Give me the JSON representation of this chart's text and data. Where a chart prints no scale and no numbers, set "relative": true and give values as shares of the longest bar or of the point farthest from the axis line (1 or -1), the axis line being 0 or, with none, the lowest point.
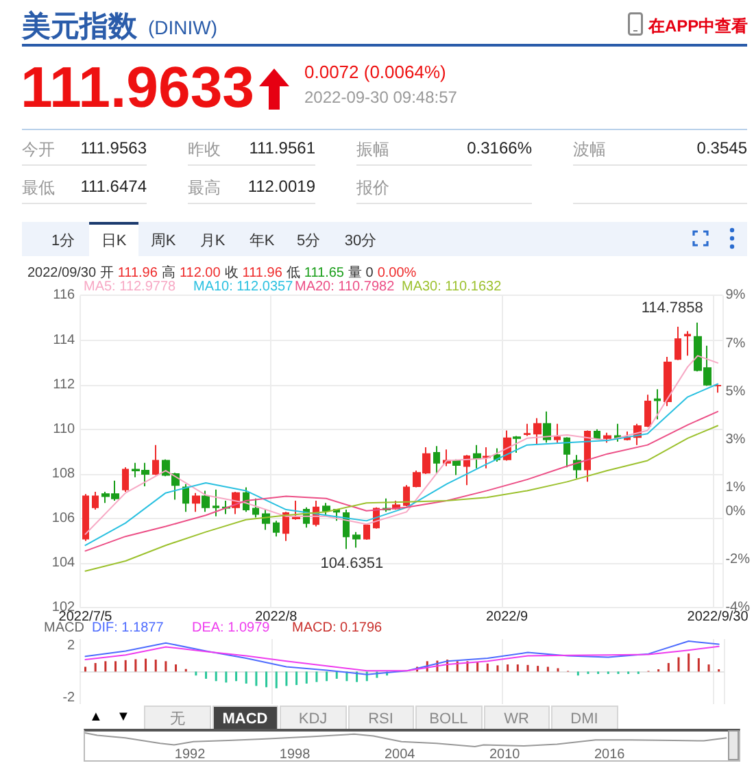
{
  "chart_data": [
    {
      "type": "other",
      "title": "美元指数",
      "subtitle": "(DINIW)",
      "annotations": [
        "在APP中查看",
        "111.9633",
        "0.0072 (0.0064%)",
        "2022-09-30 09:48:57",
        "今开",
        "111.9563",
        "昨收",
        "111.9561",
        "振幅",
        "0.3166%",
        "波幅",
        "0.3545",
        "最低",
        "111.6474",
        "最高",
        "112.0019",
        "报价",
        "1分",
        "日K",
        "周K",
        "月K",
        "年K",
        "5分",
        "30分"
      ]
    },
    {
      "type": "candlestick",
      "categories": [
        "2022/7/5",
        null,
        null,
        null,
        null,
        null,
        null,
        null,
        null,
        null,
        null,
        null,
        null,
        null,
        null,
        null,
        null,
        null,
        null,
        "2022/8",
        null,
        null,
        null,
        null,
        null,
        null,
        null,
        null,
        null,
        null,
        null,
        null,
        null,
        null,
        null,
        null,
        null,
        null,
        null,
        null,
        null,
        null,
        "2022/9",
        null,
        null,
        null,
        null,
        null,
        null,
        null,
        null,
        null,
        null,
        null,
        null,
        null,
        null,
        null,
        null,
        null,
        null,
        null,
        null,
        "2022/9/30"
      ],
      "ohlc": [
        [
          105.1,
          107.1,
          105.0,
          107.0
        ],
        [
          106.5,
          107.2,
          106.4,
          107.0
        ],
        [
          107.1,
          107.2,
          106.7,
          107.0
        ],
        [
          107.1,
          107.7,
          106.8,
          106.9
        ],
        [
          107.3,
          108.3,
          107.2,
          108.2
        ],
        [
          108.2,
          108.5,
          107.85,
          108.15
        ],
        [
          108.15,
          108.5,
          107.45,
          108.0
        ],
        [
          108.0,
          109.3,
          107.95,
          108.6
        ],
        [
          108.6,
          108.65,
          107.9,
          107.95
        ],
        [
          108.0,
          108.05,
          106.85,
          107.5
        ],
        [
          107.4,
          107.55,
          106.3,
          106.7
        ],
        [
          106.7,
          107.15,
          106.3,
          107.0
        ],
        [
          107.0,
          107.25,
          106.3,
          106.5
        ],
        [
          106.55,
          107.3,
          106.1,
          106.5
        ],
        [
          106.5,
          106.8,
          106.2,
          106.48
        ],
        [
          106.5,
          107.2,
          106.2,
          107.15
        ],
        [
          107.15,
          107.4,
          106.3,
          106.4
        ],
        [
          106.45,
          106.9,
          106.05,
          106.2
        ],
        [
          106.2,
          106.4,
          105.5,
          105.8
        ],
        [
          105.8,
          105.9,
          105.2,
          105.4
        ],
        [
          105.35,
          106.3,
          105.0,
          106.25
        ],
        [
          106.0,
          106.8,
          105.95,
          106.05
        ],
        [
          106.4,
          106.5,
          105.6,
          105.8
        ],
        [
          105.75,
          106.8,
          105.65,
          106.5
        ],
        [
          106.55,
          106.7,
          106.1,
          106.35
        ],
        [
          106.4,
          106.4,
          105.9,
          106.3
        ],
        [
          106.25,
          106.4,
          104.6351,
          105.2
        ],
        [
          105.25,
          105.4,
          104.7,
          105.1
        ],
        [
          105.1,
          105.75,
          105.05,
          105.7
        ],
        [
          105.6,
          106.5,
          105.55,
          106.45
        ],
        [
          106.45,
          106.9,
          106.3,
          106.4
        ],
        [
          106.45,
          106.8,
          106.4,
          106.6
        ],
        [
          106.6,
          107.5,
          106.55,
          107.4
        ],
        [
          107.45,
          108.15,
          107.4,
          108.05
        ],
        [
          108.05,
          109.2,
          108.0,
          108.9
        ],
        [
          108.95,
          109.25,
          108.0,
          108.5
        ],
        [
          108.5,
          109.1,
          108.35,
          108.6
        ],
        [
          108.6,
          108.65,
          107.95,
          108.4
        ],
        [
          108.35,
          108.85,
          107.5,
          108.8
        ],
        [
          108.9,
          109.3,
          108.25,
          108.7
        ],
        [
          108.75,
          109.2,
          108.25,
          108.78
        ],
        [
          108.85,
          109.15,
          108.55,
          108.65
        ],
        [
          108.65,
          109.95,
          108.6,
          109.6
        ],
        [
          109.65,
          109.7,
          108.95,
          109.6
        ],
        [
          109.78,
          110.25,
          109.7,
          109.8
        ],
        [
          109.8,
          110.5,
          109.35,
          110.25
        ],
        [
          110.25,
          110.8,
          109.4,
          109.55
        ],
        [
          109.55,
          110.25,
          109.4,
          109.65
        ],
        [
          109.6,
          109.65,
          108.3,
          108.9
        ],
        [
          108.6,
          108.85,
          107.8,
          108.2
        ],
        [
          108.2,
          109.95,
          107.65,
          109.9
        ],
        [
          109.9,
          110.0,
          109.55,
          109.6
        ],
        [
          109.6,
          109.85,
          109.4,
          109.7
        ],
        [
          109.7,
          110.25,
          109.45,
          109.6
        ],
        [
          109.55,
          109.9,
          109.5,
          109.65
        ],
        [
          109.65,
          110.25,
          109.3,
          110.15
        ],
        [
          110.15,
          111.55,
          110.1,
          111.25
        ],
        [
          111.35,
          111.8,
          110.45,
          111.3
        ],
        [
          111.25,
          113.25,
          111.05,
          113.0
        ],
        [
          113.15,
          114.6,
          113.1,
          114.05
        ],
        [
          114.2,
          114.4,
          113.3,
          114.25
        ],
        [
          114.15,
          114.7858,
          112.6,
          112.65
        ],
        [
          112.75,
          113.75,
          111.95,
          112.0
        ],
        [
          111.9563,
          112.0019,
          111.6474,
          111.9633
        ]
      ],
      "colors": [
        "#ee2a2a",
        "#ee2a2a",
        "#1a9e1a",
        "#1a9e1a",
        "#ee2a2a",
        "#1a9e1a",
        "#1a9e1a",
        "#ee2a2a",
        "#1a9e1a",
        "#1a9e1a",
        "#1a9e1a",
        "#ee2a2a",
        "#1a9e1a",
        "#1a9e1a",
        "#1a9e1a",
        "#ee2a2a",
        "#1a9e1a",
        "#1a9e1a",
        "#1a9e1a",
        "#1a9e1a",
        "#ee2a2a",
        "#ee2a2a",
        "#1a9e1a",
        "#ee2a2a",
        "#1a9e1a",
        "#1a9e1a",
        "#1a9e1a",
        "#1a9e1a",
        "#ee2a2a",
        "#ee2a2a",
        "#1a9e1a",
        "#ee2a2a",
        "#ee2a2a",
        "#ee2a2a",
        "#ee2a2a",
        "#1a9e1a",
        "#ee2a2a",
        "#1a9e1a",
        "#ee2a2a",
        "#1a9e1a",
        "#ee2a2a",
        "#1a9e1a",
        "#ee2a2a",
        "#1a9e1a",
        "#ee2a2a",
        "#ee2a2a",
        "#1a9e1a",
        "#ee2a2a",
        "#1a9e1a",
        "#1a9e1a",
        "#ee2a2a",
        "#1a9e1a",
        "#ee2a2a",
        "#1a9e1a",
        "#ee2a2a",
        "#ee2a2a",
        "#ee2a2a",
        "#1a9e1a",
        "#ee2a2a",
        "#ee2a2a",
        "#ee2a2a",
        "#1a9e1a",
        "#1a9e1a",
        "#ee2a2a"
      ],
      "series": [
        {
          "type": "line",
          "color": "#f7a8c4",
          "values": [
            105.3,
            null,
            null,
            null,
            107.15,
            null,
            null,
            null,
            108.15,
            null,
            null,
            null,
            107.05,
            null,
            null,
            null,
            106.7,
            null,
            null,
            null,
            106.1,
            null,
            null,
            null,
            106.1,
            null,
            null,
            null,
            105.75,
            null,
            null,
            null,
            106.3,
            null,
            null,
            null,
            108.6,
            null,
            null,
            null,
            108.7,
            null,
            null,
            null,
            109.6,
            null,
            null,
            null,
            109.75,
            null,
            null,
            null,
            109.5,
            null,
            null,
            null,
            109.95,
            null,
            null,
            null,
            112.8,
            113.3,
            null,
            112.9778
          ]
        },
        {
          "type": "line",
          "color": "#29c0e0",
          "values": [
            104.8,
            null,
            null,
            null,
            105.8,
            null,
            null,
            null,
            107.15,
            null,
            null,
            null,
            107.6,
            null,
            null,
            null,
            107.25,
            null,
            null,
            null,
            106.4,
            null,
            null,
            null,
            106.15,
            null,
            null,
            null,
            105.9,
            null,
            null,
            null,
            106.5,
            null,
            null,
            null,
            107.55,
            null,
            null,
            null,
            108.45,
            null,
            null,
            null,
            109.3,
            null,
            null,
            null,
            109.4,
            null,
            null,
            null,
            109.5,
            null,
            null,
            null,
            109.8,
            null,
            null,
            null,
            111.45,
            null,
            null,
            112.0357
          ]
        },
        {
          "type": "line",
          "color": "#ec4f86",
          "values": [
            104.55,
            null,
            null,
            null,
            105.2,
            null,
            null,
            null,
            105.65,
            null,
            null,
            null,
            106.15,
            null,
            null,
            null,
            106.8,
            null,
            null,
            null,
            107.0,
            null,
            null,
            null,
            106.9,
            null,
            null,
            null,
            106.35,
            null,
            null,
            null,
            106.5,
            null,
            null,
            null,
            106.8,
            null,
            null,
            null,
            107.25,
            null,
            null,
            null,
            107.75,
            null,
            null,
            null,
            108.35,
            null,
            null,
            null,
            108.9,
            null,
            null,
            null,
            109.3,
            null,
            null,
            null,
            110.2,
            null,
            null,
            110.7982
          ]
        },
        {
          "type": "line",
          "color": "#9cc12e",
          "values": [
            103.65,
            null,
            null,
            null,
            104.1,
            null,
            null,
            null,
            104.8,
            null,
            null,
            null,
            105.4,
            null,
            null,
            null,
            105.95,
            null,
            null,
            null,
            106.15,
            null,
            null,
            null,
            106.3,
            null,
            null,
            null,
            106.7,
            null,
            null,
            null,
            106.75,
            null,
            null,
            null,
            106.8,
            null,
            null,
            null,
            106.95,
            null,
            null,
            null,
            107.25,
            null,
            null,
            null,
            107.65,
            null,
            null,
            null,
            108.15,
            null,
            null,
            null,
            108.6,
            null,
            null,
            null,
            109.6,
            null,
            null,
            110.1632
          ]
        }
      ],
      "ylim": [
        102,
        116
      ],
      "yticks": [
        102,
        104,
        106,
        108,
        110,
        112,
        114,
        116
      ],
      "y2lim": [
        -4,
        9
      ],
      "y2ticks": [
        {
          "value": -4,
          "label": "-4%"
        },
        {
          "value": -2,
          "label": "-2%"
        },
        {
          "value": 0,
          "label": "0%"
        },
        {
          "value": 1,
          "label": "1%"
        },
        {
          "value": 3,
          "label": "3%"
        },
        {
          "value": 5,
          "label": "5%"
        },
        {
          "value": 7,
          "label": "7%"
        },
        {
          "value": 9,
          "label": "9%"
        }
      ],
      "grid": true,
      "marker": "none",
      "annotations": [
        "2022/09/30 开",
        "111.96",
        "高",
        "112.00",
        "收",
        "111.96",
        "低",
        "111.65",
        "量 0",
        "0.00%",
        "MA5: 112.9778",
        "MA10: 112.0357",
        "MA20: 110.7982",
        "MA30: 110.1632",
        "104.6351",
        "114.7858"
      ]
    },
    {
      "type": "line",
      "categories": [
        null,
        null,
        null,
        null,
        null,
        null,
        null,
        null,
        null,
        null,
        null,
        null,
        null,
        null,
        null,
        null,
        null,
        null,
        null,
        null,
        null,
        null,
        null,
        null,
        null,
        null,
        null,
        null,
        null,
        null,
        null,
        null,
        null,
        null,
        null,
        null,
        null,
        null,
        null,
        null,
        null,
        null,
        null,
        null,
        null,
        null,
        null,
        null,
        null,
        null,
        null,
        null,
        null,
        null,
        null,
        null,
        null,
        null,
        null,
        null,
        null,
        null,
        null,
        null
      ],
      "series": [
        {
          "type": "line",
          "color": "#4d6bfe",
          "values": [
            1.17,
            null,
            null,
            null,
            1.58,
            null,
            null,
            null,
            2.2,
            null,
            null,
            null,
            1.58,
            null,
            null,
            null,
            1.03,
            null,
            null,
            null,
            0.37,
            null,
            null,
            null,
            0.11,
            null,
            null,
            null,
            -0.22,
            null,
            null,
            null,
            0.07,
            null,
            null,
            null,
            0.8,
            null,
            null,
            null,
            1.03,
            null,
            null,
            null,
            1.47,
            null,
            null,
            null,
            1.21,
            null,
            null,
            null,
            1.1,
            null,
            null,
            null,
            1.36,
            null,
            null,
            null,
            2.34,
            null,
            null,
            2.1
          ]
        },
        {
          "type": "line",
          "color": "#ee3cee",
          "values": [
            0.92,
            null,
            null,
            null,
            1.28,
            null,
            null,
            null,
            1.9,
            null,
            null,
            null,
            1.54,
            null,
            null,
            null,
            1.21,
            null,
            null,
            null,
            0.8,
            null,
            null,
            null,
            0.44,
            null,
            null,
            null,
            0.07,
            null,
            null,
            null,
            0.07,
            null,
            null,
            null,
            0.55,
            null,
            null,
            null,
            0.8,
            null,
            null,
            null,
            1.21,
            null,
            null,
            null,
            1.25,
            null,
            null,
            null,
            1.28,
            null,
            null,
            null,
            1.32,
            null,
            null,
            null,
            1.65,
            null,
            null,
            1.94
          ]
        },
        {
          "type": "bar",
          "values": [
            0.37,
            0.66,
            0.8,
            0.8,
            0.88,
            0.95,
            0.99,
            0.92,
            0.8,
            0.55,
            0.2,
            -0.3,
            -0.55,
            -0.73,
            -0.84,
            -0.73,
            -0.92,
            -1.1,
            -1.2,
            -1.28,
            -1.1,
            -1.03,
            -0.92,
            -0.8,
            -0.73,
            -0.55,
            -0.73,
            -0.8,
            -0.73,
            -0.48,
            -0.3,
            null,
            null,
            0.37,
            0.8,
            0.84,
            0.92,
            0.8,
            0.8,
            0.73,
            0.62,
            0.48,
            0.55,
            0.55,
            0.51,
            0.44,
            0.37,
            0.26,
            0.05,
            -0.3,
            -0.18,
            -0.18,
            -0.18,
            -0.18,
            -0.18,
            -0.18,
            0.05,
            0.18,
            0.66,
            1.1,
            1.39,
            1.03,
            0.55,
            0.1796
          ],
          "colors": [
            "#c9302c",
            "#c9302c",
            "#c9302c",
            "#c9302c",
            "#c9302c",
            "#c9302c",
            "#c9302c",
            "#c9302c",
            "#c9302c",
            "#c9302c",
            "#c9302c",
            "#29c79a",
            "#29c79a",
            "#29c79a",
            "#29c79a",
            "#29c79a",
            "#29c79a",
            "#29c79a",
            "#29c79a",
            "#29c79a",
            "#29c79a",
            "#29c79a",
            "#29c79a",
            "#29c79a",
            "#29c79a",
            "#29c79a",
            "#29c79a",
            "#29c79a",
            "#29c79a",
            "#29c79a",
            "#29c79a",
            "#29c79a",
            "#c9302c",
            "#c9302c",
            "#c9302c",
            "#c9302c",
            "#c9302c",
            "#c9302c",
            "#c9302c",
            "#c9302c",
            "#c9302c",
            "#c9302c",
            "#c9302c",
            "#c9302c",
            "#c9302c",
            "#c9302c",
            "#c9302c",
            "#c9302c",
            "#c9302c",
            "#29c79a",
            "#29c79a",
            "#29c79a",
            "#29c79a",
            "#29c79a",
            "#29c79a",
            "#29c79a",
            "#c9302c",
            "#c9302c",
            "#c9302c",
            "#c9302c",
            "#c9302c",
            "#c9302c",
            "#c9302c",
            "#c9302c"
          ]
        }
      ],
      "ylim": [
        -2.5,
        2.5
      ],
      "yticks": [
        -2,
        2
      ],
      "grid": "x",
      "tick_labels": "y",
      "marker": "none",
      "annotations": [
        "MACD",
        "DIF: 1.1877",
        "DEA: 1.0979",
        "MACD: 0.1796",
        "▲",
        "▼",
        "无",
        "MACD",
        "KDJ",
        "RSI",
        "BOLL",
        "WR",
        "DMI"
      ]
    },
    {
      "type": "line",
      "relative": true,
      "color": "#999999",
      "x": [
        1986.0,
        1986.7,
        1988.3,
        1990.3,
        1991.1,
        1992.2,
        1994.2,
        1996.1,
        1998.9,
        2001.4,
        2002.5,
        2004.1,
        2006.1,
        2008.3,
        2008.8,
        2011.1,
        2013.0,
        2015.2,
        2017.2,
        2019.7,
        2021.4,
        2022.7
      ],
      "values": [
        1,
        0.82,
        0.64,
        0.24,
        0.13,
        0.36,
        0.45,
        0.55,
        0.73,
        0.91,
        0.78,
        0.36,
        0.24,
        0,
        0.13,
        0.05,
        0.18,
        0.49,
        0.49,
        0.45,
        0.42,
        0.64
      ],
      "xlim": [
        1986,
        2023.4
      ],
      "xticks": [
        1992,
        1998,
        2004,
        2010,
        2016
      ],
      "tick_labels": "x",
      "marker": "none"
    }
  ]
}
